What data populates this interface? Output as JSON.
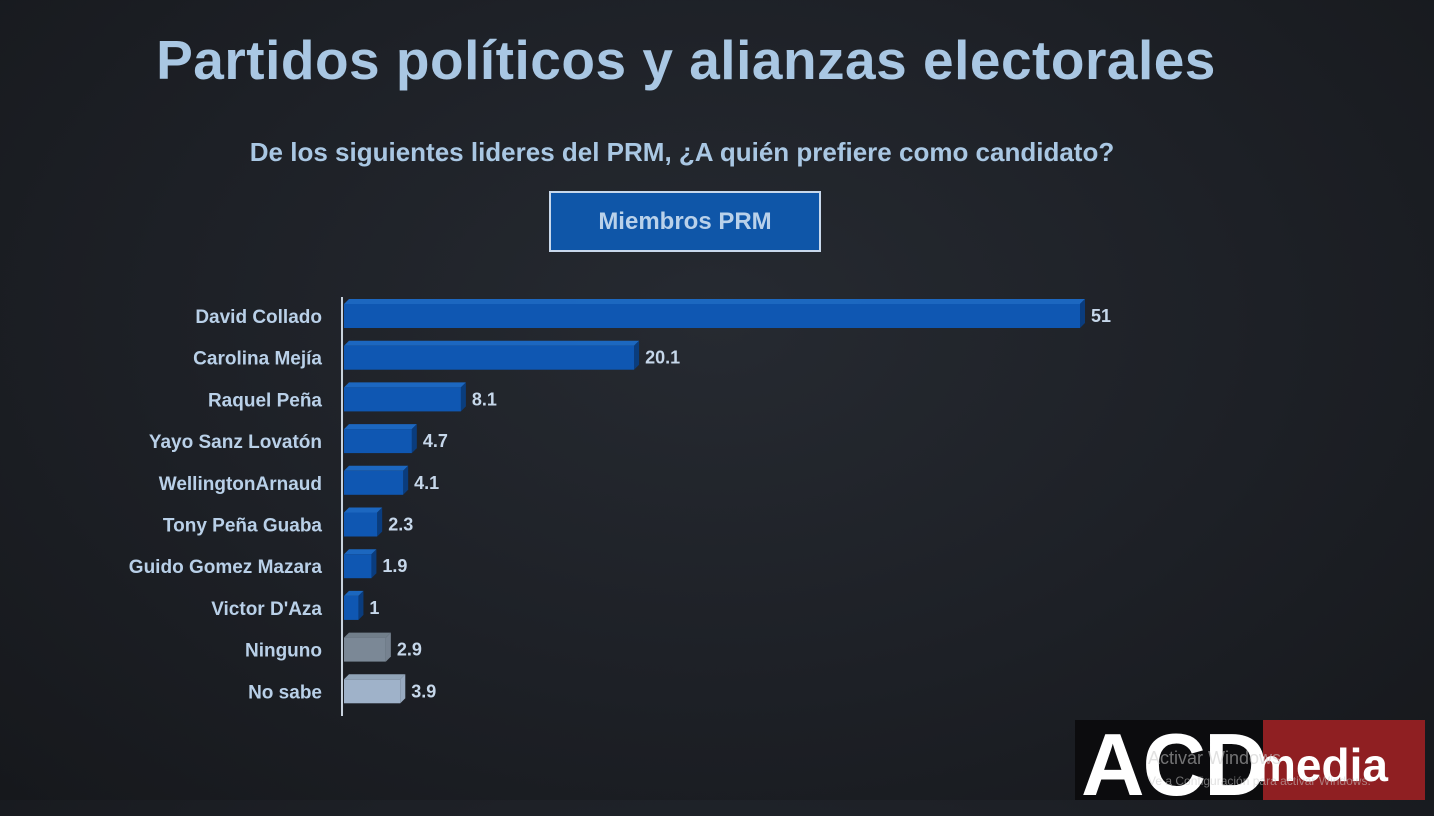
{
  "title": "Partidos políticos y alianzas electorales",
  "subtitle": "De los siguientes lideres del PRM, ¿A quién prefiere como candidato?",
  "segment_label": "Miembros PRM",
  "colors": {
    "bar_candidate": "#0f57b2",
    "bar_candidate_top": "#1c6fd0",
    "bar_candidate_side": "#093e82",
    "bar_ninguno": "#7b8896",
    "bar_nosabe": "#9fb2c9"
  },
  "chart_data": {
    "type": "bar",
    "orientation": "horizontal",
    "categories": [
      "David Collado",
      "Carolina Mejía",
      "Raquel Peña",
      "Yayo Sanz Lovatón",
      "WellingtonArnaud",
      "Tony Peña Guaba",
      "Guido Gomez Mazara",
      "Victor D'Aza",
      "Ninguno",
      "No sabe"
    ],
    "values": [
      51,
      20.1,
      8.1,
      4.7,
      4.1,
      2.3,
      1.9,
      1,
      2.9,
      3.9
    ],
    "value_labels": [
      "51",
      "20.1",
      "8.1",
      "4.7",
      "4.1",
      "2.3",
      "1.9",
      "1",
      "2.9",
      "3.9"
    ],
    "bar_color_keys": [
      "bar_candidate",
      "bar_candidate",
      "bar_candidate",
      "bar_candidate",
      "bar_candidate",
      "bar_candidate",
      "bar_candidate",
      "bar_candidate",
      "bar_ninguno",
      "bar_nosabe"
    ],
    "xlim": [
      0,
      51
    ],
    "grid": false
  },
  "logo": {
    "acd": "ACD",
    "media": "media"
  },
  "watermark": {
    "line1": "Activar Windows",
    "line2": "Ve a Configuración para activar Windows."
  }
}
